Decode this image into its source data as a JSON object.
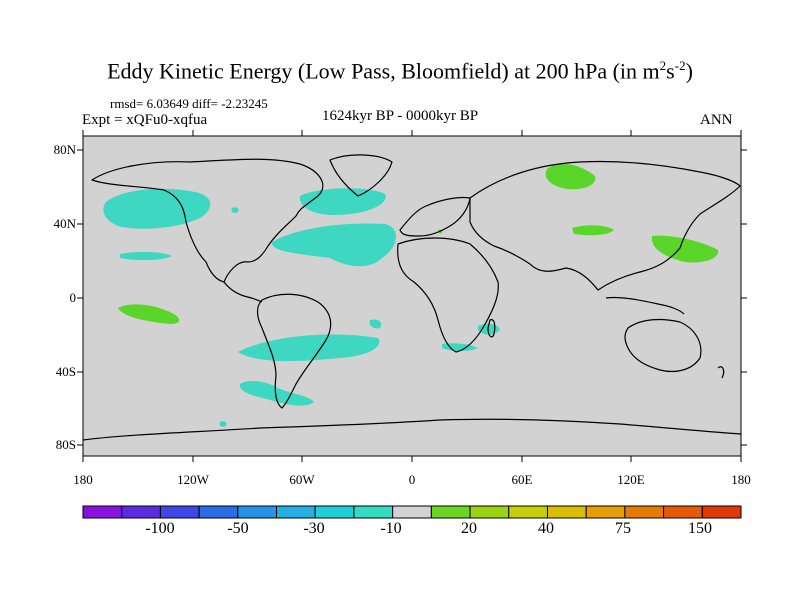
{
  "title": "Eddy Kinetic Energy (Low Pass, Bloomfield) at 200 hPa (in m",
  "title_sup1": "2",
  "title_mid": "s",
  "title_sup2": "-2",
  "title_end": ")",
  "stats": "rmsd= 6.03649 diff= -2.23245",
  "expt": "Expt = xQFu0-xqfua",
  "period": "1624kyr BP - 0000kyr BP",
  "season": "ANN",
  "map": {
    "lat_ticks": [
      "80N",
      "40N",
      "0",
      "40S",
      "80S"
    ],
    "lon_ticks": [
      "180",
      "120W",
      "60W",
      "0",
      "60E",
      "120E",
      "180"
    ],
    "ocean_color": "#d2d2d2",
    "neg_color": "#3ed8c2",
    "pos_color": "#5ad62a"
  },
  "colorbar": {
    "colors": [
      "#8a12e0",
      "#5a2ce0",
      "#3f48e6",
      "#2a6ee6",
      "#2893e6",
      "#23afe2",
      "#1fcfd8",
      "#33dcc0",
      "#d2d2d2",
      "#6ad620",
      "#9cd310",
      "#c7cf08",
      "#dcbd06",
      "#e69e06",
      "#e67a06",
      "#e45a08",
      "#e0380a"
    ],
    "labels": [
      "-100",
      "-50",
      "-30",
      "-10",
      "20",
      "40",
      "75",
      "150"
    ]
  }
}
